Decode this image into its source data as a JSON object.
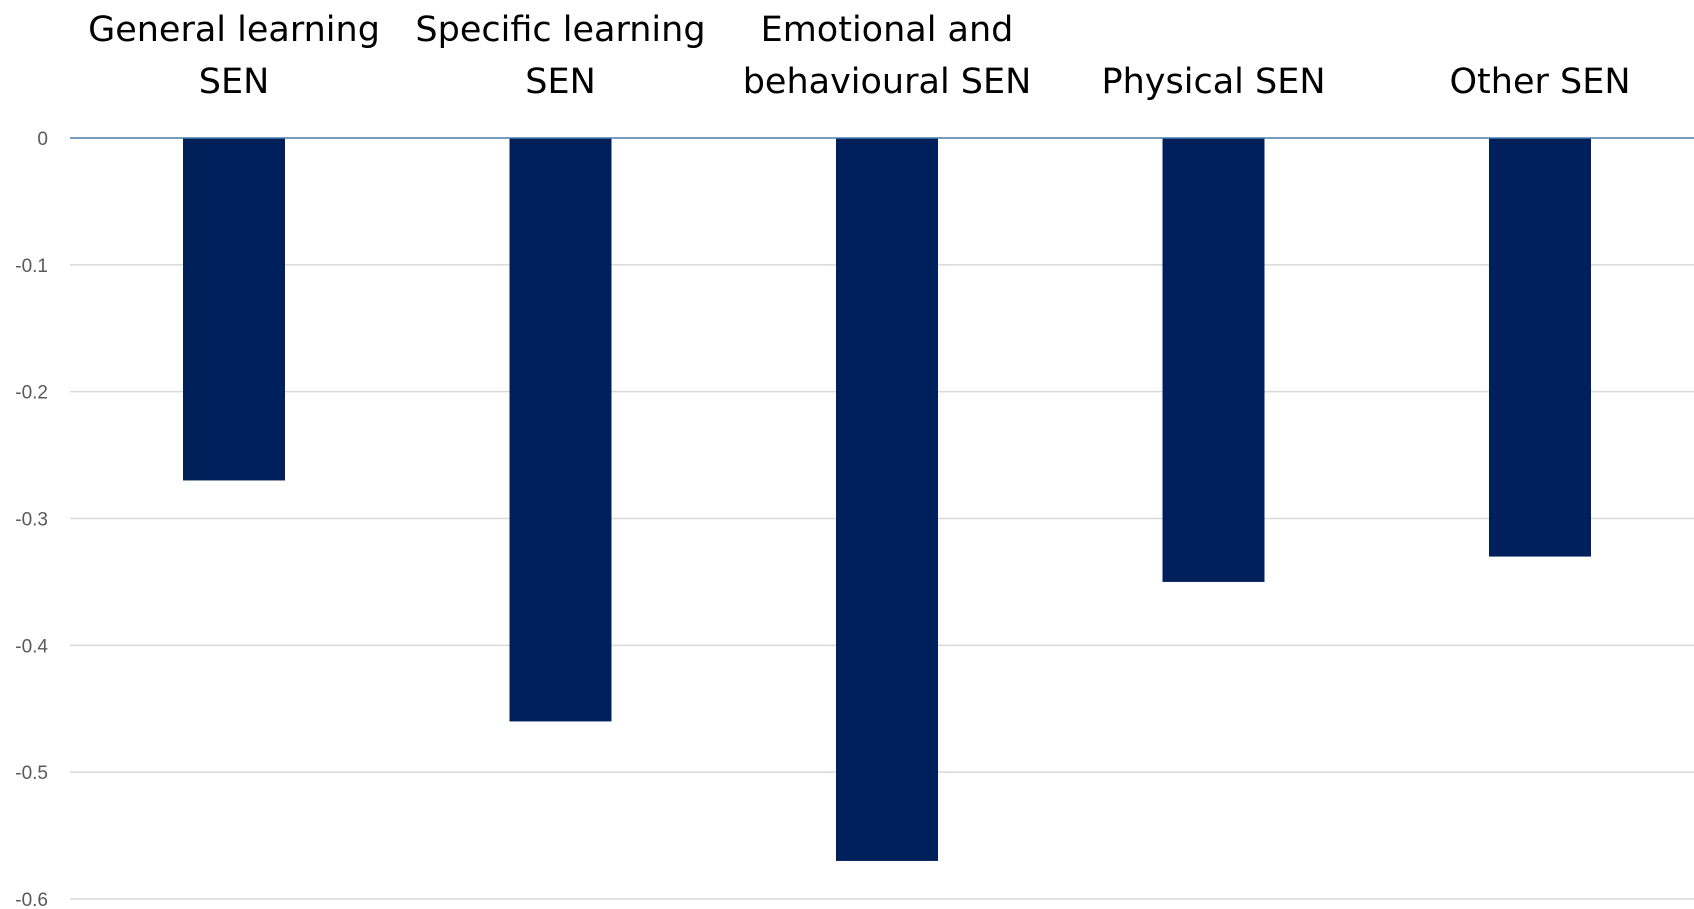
{
  "colors": {
    "bar": "#00205B",
    "gridline": "#D9D9D9",
    "zero_axis": "#4A7DA8",
    "tick_text": "#595959",
    "category_text": "#000000"
  },
  "chart_data": {
    "type": "bar",
    "orientation": "vertical",
    "category_axis_position": "top",
    "categories": [
      [
        "General learning",
        "SEN"
      ],
      [
        "Specific learning",
        "SEN"
      ],
      [
        "Emotional and",
        "behavioural SEN"
      ],
      [
        "Physical SEN"
      ],
      [
        "Other SEN"
      ]
    ],
    "values": [
      -0.27,
      -0.46,
      -0.57,
      -0.35,
      -0.33
    ],
    "ylim": [
      -0.6,
      0
    ],
    "yticks": [
      0,
      -0.1,
      -0.2,
      -0.3,
      -0.4,
      -0.5,
      -0.6
    ],
    "ytick_labels": [
      "0",
      "-0.1",
      "-0.2",
      "-0.3",
      "-0.4",
      "-0.5",
      "-0.6"
    ],
    "grid": true,
    "legend": "none"
  }
}
